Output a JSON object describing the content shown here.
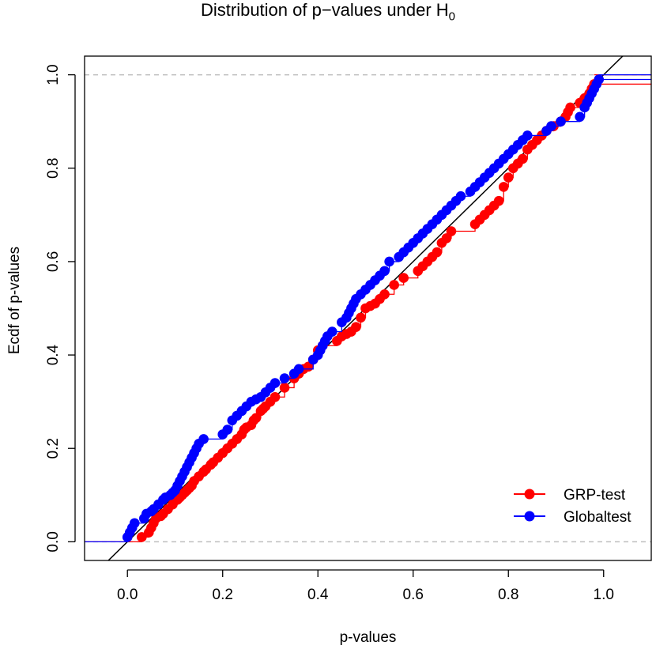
{
  "chart_data": {
    "type": "line",
    "title_prefix": "Distribution of p−values under H",
    "title_subscript": "0",
    "xlabel": "p-values",
    "ylabel": "Ecdf of p-values",
    "xlim": [
      -0.09,
      1.1
    ],
    "ylim": [
      -0.04,
      1.04
    ],
    "x_ticks": [
      0.0,
      0.2,
      0.4,
      0.6,
      0.8,
      1.0
    ],
    "x_tick_labels": [
      "0.0",
      "0.2",
      "0.4",
      "0.6",
      "0.8",
      "1.0"
    ],
    "y_ticks": [
      0.0,
      0.2,
      0.4,
      0.6,
      0.8,
      1.0
    ],
    "y_tick_labels": [
      "0.0",
      "0.2",
      "0.4",
      "0.6",
      "0.8",
      "1.0"
    ],
    "reference_lines": {
      "diagonal": {
        "intercept": 0,
        "slope": 1,
        "color": "#000000"
      },
      "horizontal": [
        0,
        1
      ],
      "horizontal_color": "#bebebe"
    },
    "legend_position": "bottom-right",
    "series": [
      {
        "name": "GRP-test",
        "color": "#ff0000",
        "x": [
          0.03,
          0.045,
          0.05,
          0.055,
          0.06,
          0.07,
          0.075,
          0.085,
          0.095,
          0.105,
          0.11,
          0.115,
          0.12,
          0.125,
          0.13,
          0.135,
          0.14,
          0.15,
          0.16,
          0.165,
          0.175,
          0.18,
          0.19,
          0.2,
          0.21,
          0.22,
          0.23,
          0.24,
          0.245,
          0.25,
          0.26,
          0.265,
          0.27,
          0.28,
          0.285,
          0.29,
          0.3,
          0.31,
          0.33,
          0.35,
          0.36,
          0.37,
          0.38,
          0.39,
          0.4,
          0.41,
          0.44,
          0.45,
          0.46,
          0.47,
          0.48,
          0.49,
          0.5,
          0.51,
          0.52,
          0.53,
          0.54,
          0.56,
          0.58,
          0.61,
          0.62,
          0.63,
          0.64,
          0.65,
          0.66,
          0.67,
          0.68,
          0.73,
          0.74,
          0.75,
          0.76,
          0.77,
          0.78,
          0.79,
          0.8,
          0.81,
          0.82,
          0.83,
          0.84,
          0.85,
          0.86,
          0.87,
          0.88,
          0.895,
          0.91,
          0.92,
          0.925,
          0.93,
          0.95,
          0.96,
          0.97,
          0.975,
          0.98
        ],
        "y": [
          0.01,
          0.02,
          0.03,
          0.04,
          0.05,
          0.055,
          0.06,
          0.07,
          0.08,
          0.09,
          0.095,
          0.1,
          0.105,
          0.11,
          0.115,
          0.12,
          0.13,
          0.14,
          0.15,
          0.155,
          0.165,
          0.17,
          0.18,
          0.19,
          0.2,
          0.21,
          0.22,
          0.23,
          0.24,
          0.245,
          0.25,
          0.26,
          0.265,
          0.28,
          0.285,
          0.29,
          0.3,
          0.31,
          0.33,
          0.35,
          0.36,
          0.37,
          0.375,
          0.39,
          0.41,
          0.42,
          0.43,
          0.44,
          0.445,
          0.45,
          0.46,
          0.48,
          0.5,
          0.505,
          0.51,
          0.52,
          0.53,
          0.55,
          0.565,
          0.58,
          0.59,
          0.6,
          0.61,
          0.62,
          0.64,
          0.65,
          0.665,
          0.68,
          0.69,
          0.7,
          0.71,
          0.72,
          0.73,
          0.76,
          0.78,
          0.8,
          0.81,
          0.82,
          0.84,
          0.85,
          0.86,
          0.87,
          0.88,
          0.89,
          0.9,
          0.91,
          0.92,
          0.93,
          0.94,
          0.95,
          0.96,
          0.97,
          0.98
        ]
      },
      {
        "name": "Globaltest",
        "color": "#0000ff",
        "x": [
          0.0,
          0.005,
          0.01,
          0.015,
          0.035,
          0.04,
          0.05,
          0.055,
          0.065,
          0.075,
          0.08,
          0.09,
          0.095,
          0.1,
          0.105,
          0.11,
          0.115,
          0.12,
          0.125,
          0.13,
          0.135,
          0.14,
          0.145,
          0.15,
          0.16,
          0.2,
          0.21,
          0.22,
          0.23,
          0.24,
          0.25,
          0.26,
          0.27,
          0.28,
          0.29,
          0.3,
          0.31,
          0.33,
          0.35,
          0.36,
          0.39,
          0.4,
          0.405,
          0.41,
          0.415,
          0.42,
          0.43,
          0.45,
          0.46,
          0.465,
          0.47,
          0.475,
          0.48,
          0.49,
          0.5,
          0.51,
          0.52,
          0.53,
          0.54,
          0.55,
          0.57,
          0.58,
          0.59,
          0.6,
          0.61,
          0.62,
          0.63,
          0.64,
          0.65,
          0.66,
          0.67,
          0.68,
          0.69,
          0.7,
          0.72,
          0.73,
          0.74,
          0.75,
          0.76,
          0.77,
          0.78,
          0.79,
          0.8,
          0.81,
          0.82,
          0.83,
          0.84,
          0.88,
          0.89,
          0.91,
          0.95,
          0.96,
          0.965,
          0.97,
          0.975,
          0.98,
          0.985,
          0.99
        ],
        "y": [
          0.01,
          0.02,
          0.03,
          0.04,
          0.05,
          0.06,
          0.065,
          0.07,
          0.08,
          0.09,
          0.095,
          0.1,
          0.105,
          0.11,
          0.12,
          0.13,
          0.14,
          0.15,
          0.16,
          0.17,
          0.18,
          0.19,
          0.2,
          0.21,
          0.22,
          0.23,
          0.24,
          0.26,
          0.27,
          0.28,
          0.29,
          0.3,
          0.305,
          0.31,
          0.32,
          0.33,
          0.34,
          0.35,
          0.36,
          0.37,
          0.39,
          0.4,
          0.41,
          0.42,
          0.43,
          0.44,
          0.45,
          0.47,
          0.48,
          0.49,
          0.5,
          0.51,
          0.52,
          0.53,
          0.54,
          0.55,
          0.56,
          0.57,
          0.58,
          0.6,
          0.61,
          0.62,
          0.63,
          0.64,
          0.65,
          0.66,
          0.67,
          0.68,
          0.69,
          0.7,
          0.71,
          0.72,
          0.73,
          0.74,
          0.75,
          0.76,
          0.77,
          0.78,
          0.79,
          0.8,
          0.81,
          0.82,
          0.83,
          0.84,
          0.85,
          0.86,
          0.87,
          0.88,
          0.89,
          0.9,
          0.91,
          0.93,
          0.94,
          0.95,
          0.96,
          0.97,
          0.98,
          0.99
        ]
      }
    ]
  }
}
